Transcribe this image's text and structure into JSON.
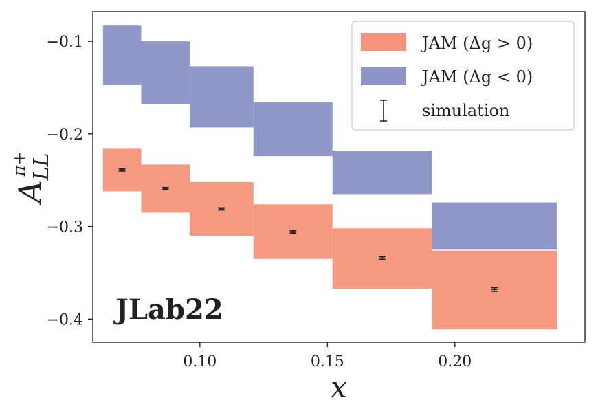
{
  "chart_data": {
    "type": "bar",
    "title": "",
    "xlabel": "x",
    "ylabel": "A_LL^{π+}",
    "ylabel_main": "A",
    "ylabel_sub": "LL",
    "ylabel_sup": "π+",
    "xlim": [
      0.058,
      0.251
    ],
    "ylim": [
      -0.425,
      -0.068
    ],
    "xticks": [
      0.1,
      0.15,
      0.2
    ],
    "xtick_labels": [
      "0.10",
      "0.15",
      "0.20"
    ],
    "yticks": [
      -0.1,
      -0.2,
      -0.3,
      -0.4
    ],
    "ytick_labels": [
      "−0.1",
      "−0.2",
      "−0.3",
      "−0.4"
    ],
    "annotation": "JLab22",
    "legend_position": "upper right",
    "series": [
      {
        "name": "JAM (Δg > 0)",
        "legend_label": "JAM (Δg > 0)",
        "color": "#f4957a",
        "bins": [
          {
            "x_low": 0.062,
            "x_high": 0.077,
            "y_low": -0.262,
            "y_high": -0.216
          },
          {
            "x_low": 0.077,
            "x_high": 0.096,
            "y_low": -0.285,
            "y_high": -0.233
          },
          {
            "x_low": 0.096,
            "x_high": 0.121,
            "y_low": -0.31,
            "y_high": -0.252
          },
          {
            "x_low": 0.121,
            "x_high": 0.152,
            "y_low": -0.335,
            "y_high": -0.276
          },
          {
            "x_low": 0.152,
            "x_high": 0.191,
            "y_low": -0.367,
            "y_high": -0.302
          },
          {
            "x_low": 0.191,
            "x_high": 0.24,
            "y_low": -0.411,
            "y_high": -0.326
          }
        ]
      },
      {
        "name": "JAM (Δg < 0)",
        "legend_label": "JAM (Δg < 0)",
        "color": "#8e96c8",
        "bins": [
          {
            "x_low": 0.062,
            "x_high": 0.077,
            "y_low": -0.147,
            "y_high": -0.083
          },
          {
            "x_low": 0.077,
            "x_high": 0.096,
            "y_low": -0.168,
            "y_high": -0.1
          },
          {
            "x_low": 0.096,
            "x_high": 0.121,
            "y_low": -0.193,
            "y_high": -0.127
          },
          {
            "x_low": 0.121,
            "x_high": 0.152,
            "y_low": -0.224,
            "y_high": -0.166
          },
          {
            "x_low": 0.152,
            "x_high": 0.191,
            "y_low": -0.265,
            "y_high": -0.218
          },
          {
            "x_low": 0.191,
            "x_high": 0.24,
            "y_low": -0.325,
            "y_high": -0.274
          }
        ]
      }
    ],
    "simulation": {
      "name": "simulation",
      "legend_label": "simulation",
      "color": "#222222",
      "points": [
        {
          "x": 0.0695,
          "y": -0.239,
          "err": 0.0012
        },
        {
          "x": 0.0865,
          "y": -0.259,
          "err": 0.0012
        },
        {
          "x": 0.1085,
          "y": -0.281,
          "err": 0.0012
        },
        {
          "x": 0.1365,
          "y": -0.306,
          "err": 0.0014
        },
        {
          "x": 0.1715,
          "y": -0.334,
          "err": 0.0016
        },
        {
          "x": 0.2155,
          "y": -0.368,
          "err": 0.002
        }
      ]
    }
  }
}
